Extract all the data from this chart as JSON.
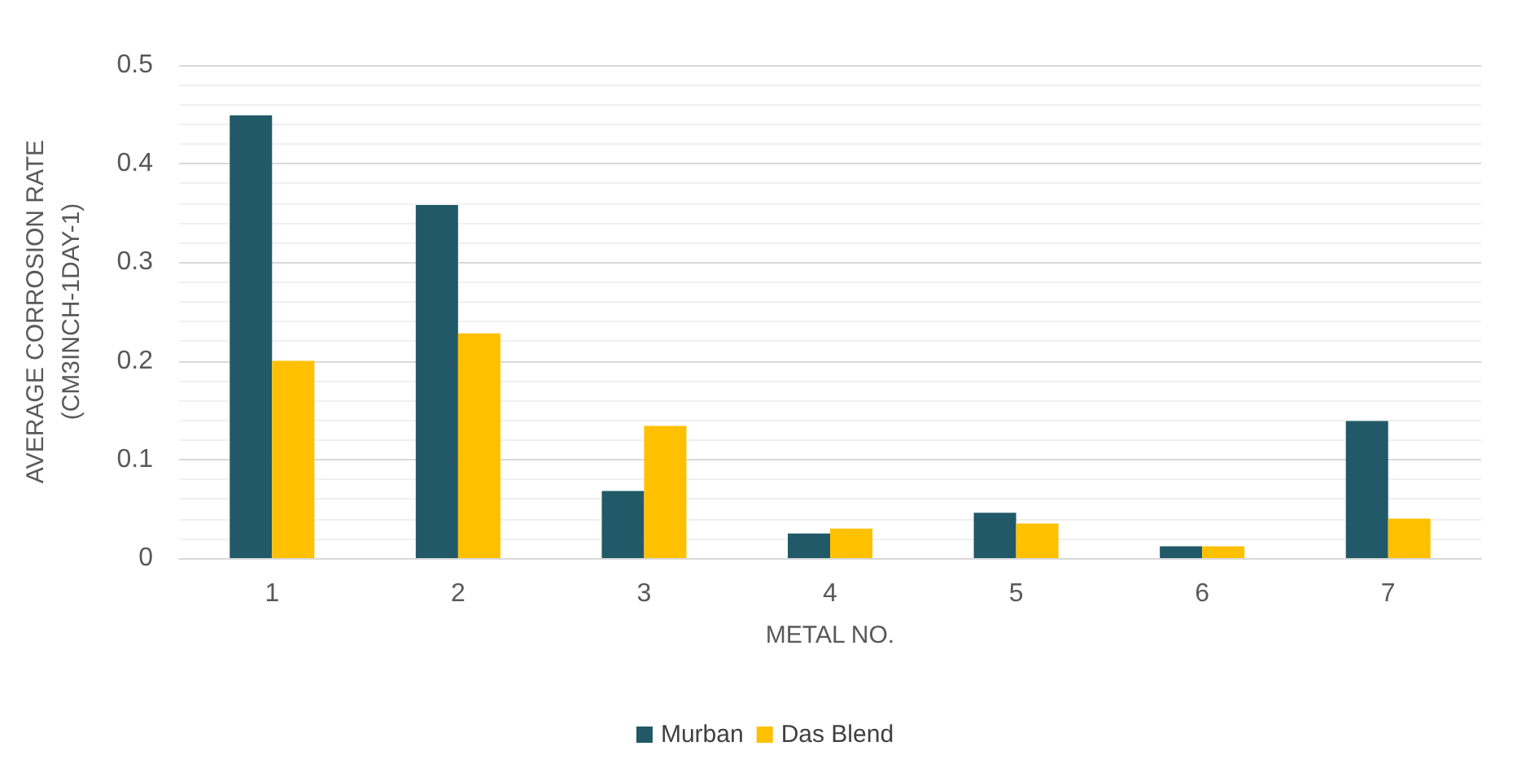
{
  "chart_data": {
    "type": "bar",
    "xlabel": "METAL NO.",
    "ylabel": "AVERAGE CORROSION RATE\n(CM3INCH-1DAY-1)",
    "categories": [
      "1",
      "2",
      "3",
      "4",
      "5",
      "6",
      "7"
    ],
    "series": [
      {
        "name": "Murban",
        "color": "#215968",
        "values": [
          0.449,
          0.358,
          0.068,
          0.025,
          0.046,
          0.012,
          0.139
        ]
      },
      {
        "name": "Das Blend",
        "color": "#ffc000",
        "values": [
          0.2,
          0.228,
          0.134,
          0.03,
          0.035,
          0.012,
          0.04
        ]
      }
    ],
    "ylim": [
      0,
      0.5
    ],
    "yticks": [
      0,
      0.1,
      0.2,
      0.3,
      0.4,
      0.5
    ],
    "grid": "y",
    "legend": "bottom"
  }
}
